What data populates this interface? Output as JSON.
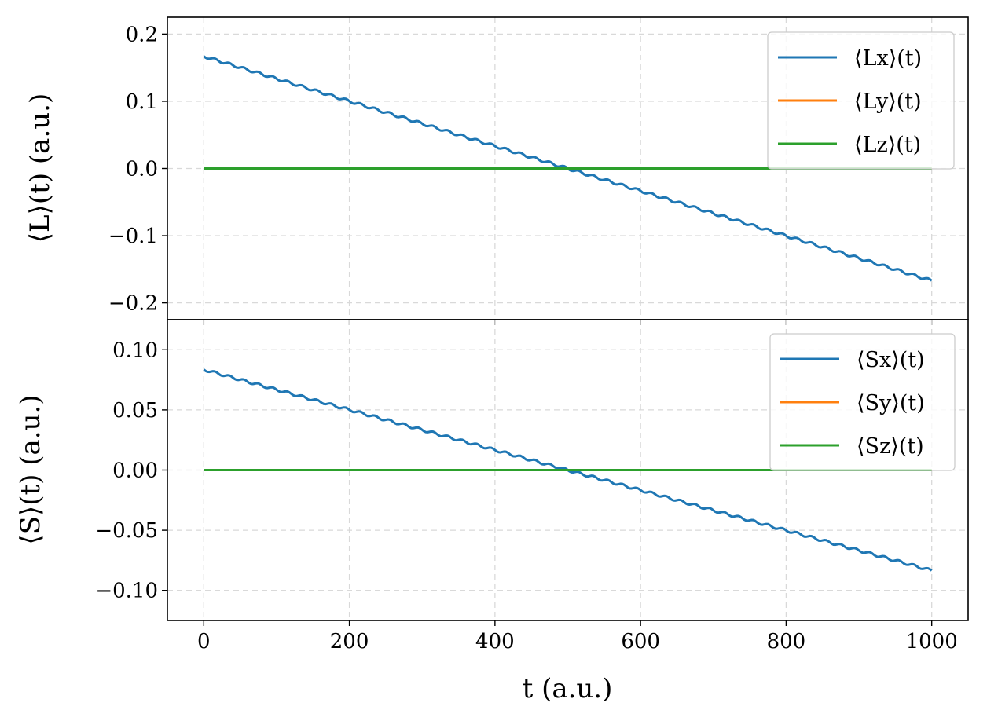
{
  "chart_data": [
    {
      "type": "line",
      "ylabel": "⟨L⟩(t) (a.u.)",
      "xlim": [
        -50,
        1050
      ],
      "ylim": [
        -0.225,
        0.225
      ],
      "yticks": [
        "0.2",
        "0.1",
        "0.0",
        "−0.1",
        "−0.2"
      ],
      "ytick_values": [
        0.2,
        0.1,
        0.0,
        -0.1,
        -0.2
      ],
      "grid": true,
      "legend_position": "top-right",
      "series": [
        {
          "name": "⟨Lx⟩(t)",
          "color": "#1f77b4",
          "x": [
            0,
            1000
          ],
          "y": [
            0.167,
            -0.167
          ]
        },
        {
          "name": "⟨Ly⟩(t)",
          "color": "#ff7f0e",
          "x": [
            0,
            1000
          ],
          "y": [
            0,
            0
          ]
        },
        {
          "name": "⟨Lz⟩(t)",
          "color": "#2ca02c",
          "x": [
            0,
            1000
          ],
          "y": [
            0,
            0
          ]
        }
      ]
    },
    {
      "type": "line",
      "xlabel": "t (a.u.)",
      "ylabel": "⟨S⟩(t) (a.u.)",
      "xlim": [
        -50,
        1050
      ],
      "ylim": [
        -0.125,
        0.125
      ],
      "xticks": [
        "0",
        "200",
        "400",
        "600",
        "800",
        "1000"
      ],
      "xtick_values": [
        0,
        200,
        400,
        600,
        800,
        1000
      ],
      "yticks": [
        "0.10",
        "0.05",
        "0.00",
        "−0.05",
        "−0.10"
      ],
      "ytick_values": [
        0.1,
        0.05,
        0.0,
        -0.05,
        -0.1
      ],
      "grid": true,
      "legend_position": "top-right",
      "series": [
        {
          "name": "⟨Sx⟩(t)",
          "color": "#1f77b4",
          "x": [
            0,
            1000
          ],
          "y": [
            0.0835,
            -0.0835
          ]
        },
        {
          "name": "⟨Sy⟩(t)",
          "color": "#ff7f0e",
          "x": [
            0,
            1000
          ],
          "y": [
            0,
            0
          ]
        },
        {
          "name": "⟨Sz⟩(t)",
          "color": "#2ca02c",
          "x": [
            0,
            1000
          ],
          "y": [
            0,
            0
          ]
        }
      ]
    }
  ]
}
